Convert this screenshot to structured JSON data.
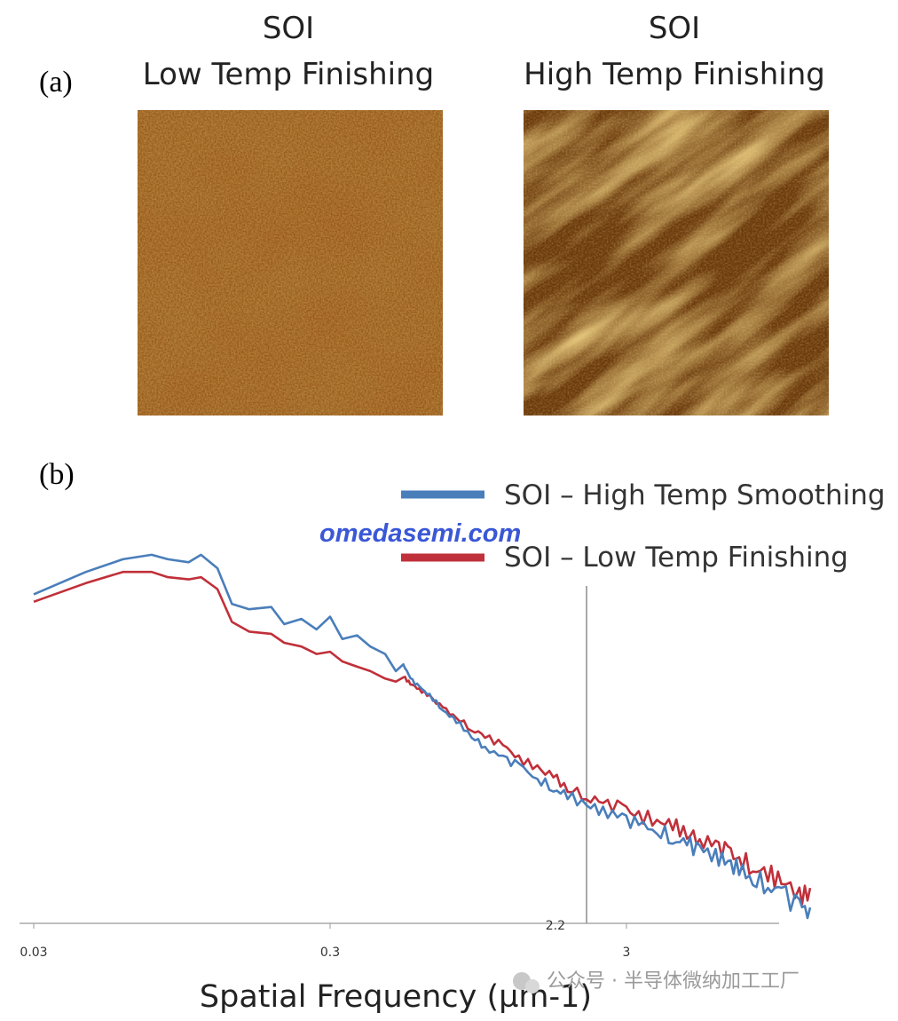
{
  "panel_a_label": "(a)",
  "panel_b_label": "(b)",
  "images": [
    {
      "title_line1": "SOI",
      "title_line2": "Low Temp Finishing"
    },
    {
      "title_line1": "SOI",
      "title_line2": "High Temp Finishing"
    }
  ],
  "watermark_brand": "omedasemi.com",
  "watermark_footer": "公众号 · 半导体微纳加工工厂",
  "chart_data": {
    "type": "line",
    "xlabel": "Spatial Frequency (µm-1)",
    "xscale": "log",
    "xlim": [
      0.03,
      20
    ],
    "x_ticks": [
      "0.03",
      "0.3",
      "3"
    ],
    "marker_line": {
      "x": 2.2,
      "label": "2.2"
    },
    "legend_position": "top-right",
    "series": [
      {
        "name": "SOI – High Temp Smoothing",
        "color": "#4a7ebb",
        "x": [
          0.03,
          0.045,
          0.06,
          0.075,
          0.085,
          0.1,
          0.11,
          0.125,
          0.14,
          0.16,
          0.19,
          0.21,
          0.24,
          0.27,
          0.3,
          0.33,
          0.37,
          0.41,
          0.46,
          0.5,
          0.53,
          0.56,
          0.6,
          0.65,
          0.72,
          0.8,
          0.9,
          1.0,
          1.15,
          1.3,
          1.5,
          1.7,
          1.9,
          2.2,
          2.5,
          2.9,
          3.3,
          3.8,
          4.3,
          4.8,
          5.3,
          6.0,
          6.6,
          7.2,
          8.0,
          9.0,
          10.0,
          11.5,
          12.5
        ],
        "y": [
          -0.35,
          -0.05,
          0.12,
          0.18,
          0.12,
          0.08,
          0.18,
          0.0,
          -0.48,
          -0.55,
          -0.52,
          -0.75,
          -0.68,
          -0.82,
          -0.65,
          -0.95,
          -0.9,
          -1.05,
          -1.15,
          -1.38,
          -1.28,
          -1.48,
          -1.6,
          -1.7,
          -1.9,
          -2.05,
          -2.25,
          -2.4,
          -2.55,
          -2.65,
          -2.82,
          -2.95,
          -3.05,
          -3.18,
          -3.25,
          -3.35,
          -3.45,
          -3.5,
          -3.62,
          -3.7,
          -3.78,
          -3.85,
          -3.95,
          -4.05,
          -4.15,
          -4.25,
          -4.35,
          -4.55,
          -4.6
        ]
      },
      {
        "name": "SOI – Low Temp Finishing",
        "color": "#c0303a",
        "x": [
          0.03,
          0.045,
          0.06,
          0.075,
          0.085,
          0.1,
          0.11,
          0.125,
          0.14,
          0.16,
          0.19,
          0.21,
          0.24,
          0.27,
          0.3,
          0.33,
          0.37,
          0.41,
          0.46,
          0.5,
          0.53,
          0.56,
          0.6,
          0.65,
          0.72,
          0.8,
          0.9,
          1.0,
          1.15,
          1.3,
          1.5,
          1.7,
          1.9,
          2.2,
          2.5,
          2.9,
          3.3,
          3.8,
          4.3,
          4.8,
          5.3,
          6.0,
          6.6,
          7.2,
          8.0,
          9.0,
          10.0,
          11.5,
          12.5
        ],
        "y": [
          -0.45,
          -0.2,
          -0.05,
          -0.05,
          -0.12,
          -0.15,
          -0.12,
          -0.28,
          -0.72,
          -0.85,
          -0.88,
          -1.0,
          -1.05,
          -1.15,
          -1.12,
          -1.25,
          -1.32,
          -1.38,
          -1.48,
          -1.52,
          -1.45,
          -1.55,
          -1.62,
          -1.72,
          -1.88,
          -2.0,
          -2.15,
          -2.25,
          -2.38,
          -2.55,
          -2.68,
          -2.8,
          -2.95,
          -3.05,
          -3.15,
          -3.22,
          -3.32,
          -3.38,
          -3.45,
          -3.55,
          -3.62,
          -3.72,
          -3.82,
          -3.9,
          -4.0,
          -4.1,
          -4.2,
          -4.35,
          -4.4
        ]
      }
    ]
  }
}
